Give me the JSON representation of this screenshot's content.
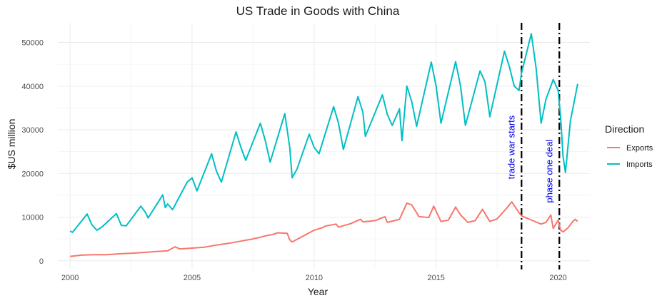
{
  "colors": {
    "exports": "#F8766D",
    "imports": "#00BFC4",
    "grid_major": "#ebebeb",
    "grid_minor": "#f5f5f5",
    "annotation": "#0000EE",
    "vline": "#000000"
  },
  "chart_data": {
    "type": "line",
    "title": "US Trade in Goods with China",
    "xlabel": "Year",
    "ylabel": "$US million",
    "xlim": [
      1999.5,
      2021.3
    ],
    "ylim": [
      -2000,
      54500
    ],
    "x_ticks": [
      2000,
      2005,
      2010,
      2015,
      2020
    ],
    "x_tick_labels": [
      "2000",
      "2005",
      "2010",
      "2015",
      "2020"
    ],
    "y_ticks": [
      0,
      10000,
      20000,
      30000,
      40000,
      50000
    ],
    "y_tick_labels": [
      "0",
      "10000",
      "20000",
      "30000",
      "40000",
      "50000"
    ],
    "grid": true,
    "legend": {
      "title": "Direction",
      "position": "right"
    },
    "series": [
      {
        "name": "Exports",
        "color": "#F8766D",
        "points": [
          [
            2000.0,
            1000
          ],
          [
            2000.5,
            1300
          ],
          [
            2001.0,
            1400
          ],
          [
            2001.5,
            1400
          ],
          [
            2002.0,
            1600
          ],
          [
            2002.5,
            1700
          ],
          [
            2003.0,
            1900
          ],
          [
            2003.5,
            2100
          ],
          [
            2004.0,
            2300
          ],
          [
            2004.3,
            3200
          ],
          [
            2004.5,
            2700
          ],
          [
            2005.0,
            2900
          ],
          [
            2005.5,
            3100
          ],
          [
            2006.0,
            3600
          ],
          [
            2006.5,
            4000
          ],
          [
            2007.0,
            4500
          ],
          [
            2007.5,
            5000
          ],
          [
            2007.8,
            5400
          ],
          [
            2008.0,
            5700
          ],
          [
            2008.3,
            6000
          ],
          [
            2008.5,
            6400
          ],
          [
            2008.9,
            6300
          ],
          [
            2009.0,
            4800
          ],
          [
            2009.1,
            4300
          ],
          [
            2009.5,
            5500
          ],
          [
            2010.0,
            7000
          ],
          [
            2010.3,
            7500
          ],
          [
            2010.5,
            8000
          ],
          [
            2010.9,
            8400
          ],
          [
            2011.0,
            7700
          ],
          [
            2011.5,
            8500
          ],
          [
            2011.9,
            9500
          ],
          [
            2012.0,
            8900
          ],
          [
            2012.5,
            9200
          ],
          [
            2012.9,
            10100
          ],
          [
            2013.0,
            8800
          ],
          [
            2013.3,
            9200
          ],
          [
            2013.5,
            9500
          ],
          [
            2013.8,
            13200
          ],
          [
            2014.0,
            12800
          ],
          [
            2014.3,
            10100
          ],
          [
            2014.7,
            9900
          ],
          [
            2014.9,
            12500
          ],
          [
            2015.2,
            9000
          ],
          [
            2015.5,
            9300
          ],
          [
            2015.8,
            12300
          ],
          [
            2016.0,
            10500
          ],
          [
            2016.3,
            8800
          ],
          [
            2016.6,
            9200
          ],
          [
            2016.9,
            11800
          ],
          [
            2017.2,
            9000
          ],
          [
            2017.5,
            9600
          ],
          [
            2017.9,
            12100
          ],
          [
            2018.1,
            13500
          ],
          [
            2018.4,
            11000
          ],
          [
            2018.5,
            10300
          ],
          [
            2018.7,
            9800
          ],
          [
            2019.0,
            9100
          ],
          [
            2019.3,
            8400
          ],
          [
            2019.5,
            8800
          ],
          [
            2019.7,
            10500
          ],
          [
            2019.8,
            7400
          ],
          [
            2020.0,
            9300
          ],
          [
            2020.1,
            7000
          ],
          [
            2020.2,
            6600
          ],
          [
            2020.4,
            7500
          ],
          [
            2020.6,
            9000
          ],
          [
            2020.7,
            9500
          ],
          [
            2020.8,
            9000
          ]
        ]
      },
      {
        "name": "Imports",
        "color": "#00BFC4",
        "points": [
          [
            2000.0,
            6800
          ],
          [
            2000.1,
            6500
          ],
          [
            2000.7,
            10700
          ],
          [
            2000.9,
            8200
          ],
          [
            2001.1,
            7000
          ],
          [
            2001.3,
            7700
          ],
          [
            2001.9,
            10800
          ],
          [
            2002.1,
            8100
          ],
          [
            2002.3,
            8000
          ],
          [
            2002.9,
            12500
          ],
          [
            2003.1,
            11000
          ],
          [
            2003.2,
            9800
          ],
          [
            2003.8,
            15100
          ],
          [
            2003.9,
            12200
          ],
          [
            2004.0,
            13000
          ],
          [
            2004.2,
            11700
          ],
          [
            2004.8,
            18000
          ],
          [
            2005.0,
            19000
          ],
          [
            2005.2,
            16000
          ],
          [
            2005.8,
            24500
          ],
          [
            2006.0,
            20500
          ],
          [
            2006.2,
            18000
          ],
          [
            2006.8,
            29500
          ],
          [
            2007.0,
            26000
          ],
          [
            2007.2,
            23000
          ],
          [
            2007.8,
            31500
          ],
          [
            2008.0,
            27500
          ],
          [
            2008.2,
            22600
          ],
          [
            2008.8,
            33700
          ],
          [
            2009.0,
            26000
          ],
          [
            2009.1,
            19000
          ],
          [
            2009.3,
            21000
          ],
          [
            2009.8,
            29000
          ],
          [
            2010.0,
            26000
          ],
          [
            2010.2,
            24500
          ],
          [
            2010.8,
            35300
          ],
          [
            2011.0,
            31500
          ],
          [
            2011.2,
            25500
          ],
          [
            2011.8,
            37600
          ],
          [
            2012.0,
            34000
          ],
          [
            2012.1,
            28500
          ],
          [
            2012.8,
            38000
          ],
          [
            2013.0,
            33500
          ],
          [
            2013.2,
            31000
          ],
          [
            2013.5,
            34800
          ],
          [
            2013.6,
            27500
          ],
          [
            2013.8,
            40000
          ],
          [
            2014.0,
            36500
          ],
          [
            2014.2,
            30800
          ],
          [
            2014.8,
            45500
          ],
          [
            2015.0,
            40000
          ],
          [
            2015.2,
            31500
          ],
          [
            2015.8,
            45600
          ],
          [
            2016.0,
            40000
          ],
          [
            2016.2,
            31000
          ],
          [
            2016.8,
            43500
          ],
          [
            2017.0,
            41000
          ],
          [
            2017.2,
            33000
          ],
          [
            2017.8,
            48000
          ],
          [
            2018.0,
            44500
          ],
          [
            2018.2,
            40000
          ],
          [
            2018.4,
            39000
          ],
          [
            2018.5,
            43000
          ],
          [
            2018.9,
            52000
          ],
          [
            2019.1,
            44000
          ],
          [
            2019.3,
            31500
          ],
          [
            2019.5,
            37000
          ],
          [
            2019.8,
            41500
          ],
          [
            2020.0,
            39000
          ],
          [
            2020.1,
            33000
          ],
          [
            2020.2,
            24000
          ],
          [
            2020.3,
            20200
          ],
          [
            2020.5,
            32000
          ],
          [
            2020.8,
            40500
          ]
        ]
      }
    ],
    "vlines": [
      {
        "x": 2018.5,
        "label": "trade war starts",
        "label_y": 26000
      },
      {
        "x": 2020.05,
        "label": "phase one deal",
        "label_y": 20500
      }
    ]
  }
}
